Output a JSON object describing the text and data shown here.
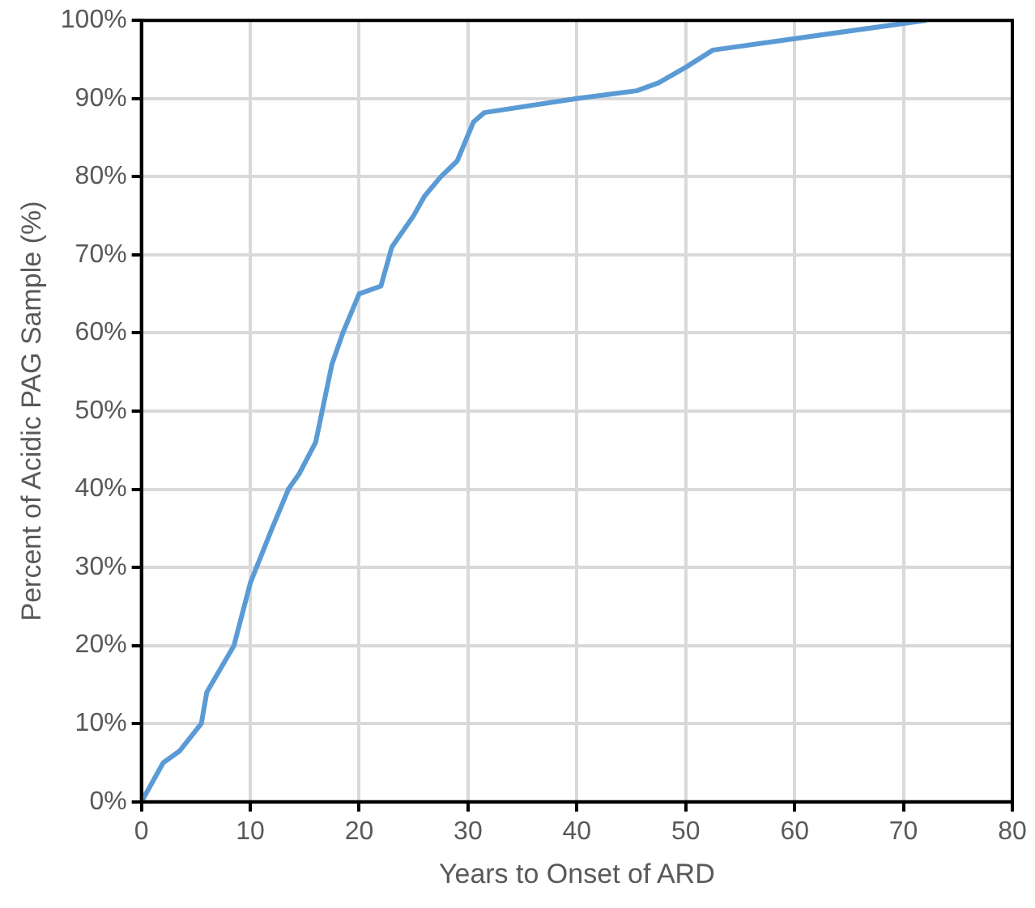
{
  "chart_data": {
    "type": "line",
    "xlabel": "Years to Onset of ARD",
    "ylabel": "Percent of Acidic PAG Sample (%)",
    "x": [
      0,
      2,
      3.5,
      5.5,
      6,
      8.5,
      10,
      12,
      13.5,
      14.5,
      16,
      17.5,
      18.5,
      20,
      22,
      23,
      25,
      26,
      27.5,
      29,
      30.5,
      31.5,
      40,
      45.5,
      47.5,
      50,
      52.5,
      72
    ],
    "series": [
      {
        "color": "#5b9bd5",
        "values": [
          0,
          5,
          6.5,
          10,
          14,
          20,
          28,
          35,
          40,
          42,
          46,
          56,
          60,
          65,
          66,
          71,
          75,
          77.5,
          80,
          82,
          87,
          88.2,
          90,
          91,
          92,
          94,
          96.2,
          100
        ]
      }
    ],
    "xlim": [
      0,
      80
    ],
    "xticks": [
      0,
      10,
      20,
      30,
      40,
      50,
      60,
      70,
      80
    ],
    "ylim": [
      0,
      100
    ],
    "yticks": [
      {
        "value": 0,
        "label": "0%"
      },
      {
        "value": 10,
        "label": "10%"
      },
      {
        "value": 20,
        "label": "20%"
      },
      {
        "value": 30,
        "label": "30%"
      },
      {
        "value": 40,
        "label": "40%"
      },
      {
        "value": 50,
        "label": "50%"
      },
      {
        "value": 60,
        "label": "60%"
      },
      {
        "value": 70,
        "label": "70%"
      },
      {
        "value": 80,
        "label": "80%"
      },
      {
        "value": 90,
        "label": "90%"
      },
      {
        "value": 100,
        "label": "100%"
      }
    ],
    "grid": true,
    "legend": false,
    "marker": "none",
    "line_style": "solid"
  }
}
